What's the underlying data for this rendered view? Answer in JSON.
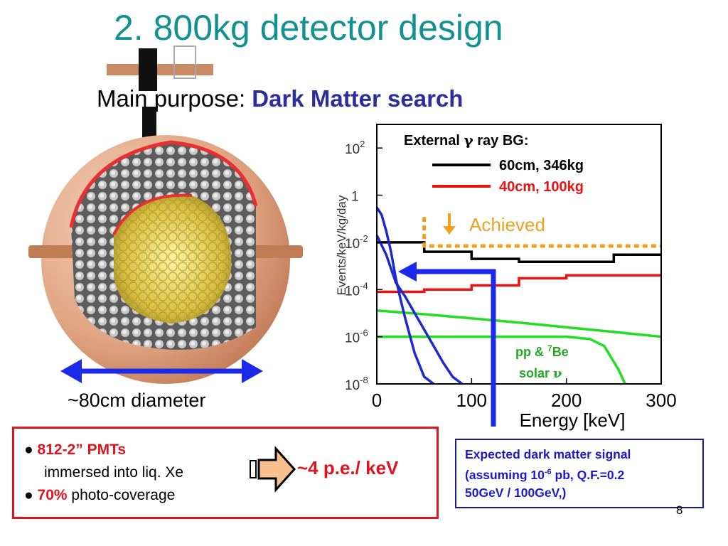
{
  "title": "2. 800kg detector design",
  "purpose": {
    "label": "Main purpose:",
    "highlight": "Dark Matter search"
  },
  "diameter_label": "~80cm diameter",
  "pmt_box": {
    "line1_red": "812-2” PMTs",
    "line2": "immersed into liq. Xe",
    "line3_red": "70%",
    "line3": "photo-coverage",
    "result": "~4 p.e./ keV"
  },
  "signal_box": {
    "line1": "Expected dark matter signal",
    "line2_a": "(assuming 10",
    "line2_sup": "-6",
    "line2_b": " pb, Q.F.=0.2",
    "line3": "50GeV / 100GeV,)"
  },
  "page_number": "8",
  "colors": {
    "title": "#139090",
    "accent_blue": "#2b2f9c",
    "red": "#e0141e",
    "green": "#22dd22",
    "orange": "#f0a020",
    "signal_blue": "#1a1acc"
  },
  "chart_data": {
    "type": "line",
    "xlabel": "Energy [keV]",
    "ylabel": "Events/keV/kg/day",
    "xlim": [
      0,
      300
    ],
    "ylim": [
      1e-08,
      1000.0
    ],
    "yscale": "log",
    "x_ticks": [
      "0",
      "100",
      "200",
      "300"
    ],
    "y_ticks": [
      {
        "base": "10",
        "exp": "2"
      },
      {
        "base": "1",
        "exp": ""
      },
      {
        "base": "10",
        "exp": "-2"
      },
      {
        "base": "10",
        "exp": "-4"
      },
      {
        "base": "10",
        "exp": "-6"
      },
      {
        "base": "10",
        "exp": "-8"
      }
    ],
    "legend": {
      "title_a": "External",
      "title_gamma": "γ",
      "title_b": " ray BG:",
      "entries": [
        {
          "name": "60cm, 346kg",
          "color": "#000000"
        },
        {
          "name": "40cm, 100kg",
          "color": "#ee1111"
        }
      ]
    },
    "annotations": {
      "achieved": "Achieved",
      "pp_a": "pp & ",
      "pp_sup": "7",
      "pp_b": "Be",
      "solar_a": "solar ",
      "solar_nu": "ν"
    },
    "series": [
      {
        "name": "60cm, 346kg",
        "color": "#000000",
        "x": [
          0,
          50,
          50,
          100,
          100,
          150,
          150,
          250,
          250,
          300
        ],
        "y": [
          0.01,
          0.01,
          0.004,
          0.004,
          0.002,
          0.002,
          0.0015,
          0.0015,
          0.003,
          0.003
        ]
      },
      {
        "name": "40cm, 100kg",
        "color": "#ee1111",
        "x": [
          0,
          50,
          50,
          100,
          100,
          150,
          150,
          200,
          200,
          300
        ],
        "y": [
          8e-05,
          8e-05,
          0.0001,
          0.0001,
          0.00015,
          0.00015,
          0.0003,
          0.0003,
          0.0004,
          0.0004
        ]
      },
      {
        "name": "Achieved",
        "color": "#f0a020",
        "dashed": true,
        "x": [
          50,
          50,
          300
        ],
        "y": [
          0.12,
          0.007,
          0.007
        ]
      },
      {
        "name": "pp & 7Be solar ν (upper)",
        "color": "#22dd22",
        "x": [
          0,
          50,
          100,
          150,
          200,
          250,
          300
        ],
        "y": [
          1.3e-05,
          9e-06,
          6e-06,
          4e-06,
          2.5e-06,
          1.6e-06,
          1e-06
        ]
      },
      {
        "name": "pp & 7Be solar ν (lower)",
        "color": "#22dd22",
        "x": [
          0,
          100,
          200,
          225,
          240,
          255,
          262
        ],
        "y": [
          1e-06,
          1e-06,
          1e-06,
          8e-07,
          4e-07,
          4e-08,
          1e-08
        ]
      },
      {
        "name": "Expected signal 50GeV",
        "color": "#1a2ad0",
        "x": [
          0,
          5,
          10,
          15,
          20,
          25,
          30,
          40,
          50,
          60
        ],
        "y": [
          0.3,
          0.15,
          0.03,
          0.004,
          0.0003,
          4e-05,
          6e-06,
          2e-07,
          2e-08,
          1e-08
        ]
      },
      {
        "name": "Expected signal 100GeV",
        "color": "#1a2ad0",
        "x": [
          0,
          10,
          20,
          30,
          40,
          50,
          60,
          70,
          80,
          90
        ],
        "y": [
          0.02,
          0.003,
          0.0002,
          5e-05,
          1e-05,
          2e-06,
          4e-07,
          8e-08,
          2e-08,
          1e-08
        ]
      }
    ]
  }
}
